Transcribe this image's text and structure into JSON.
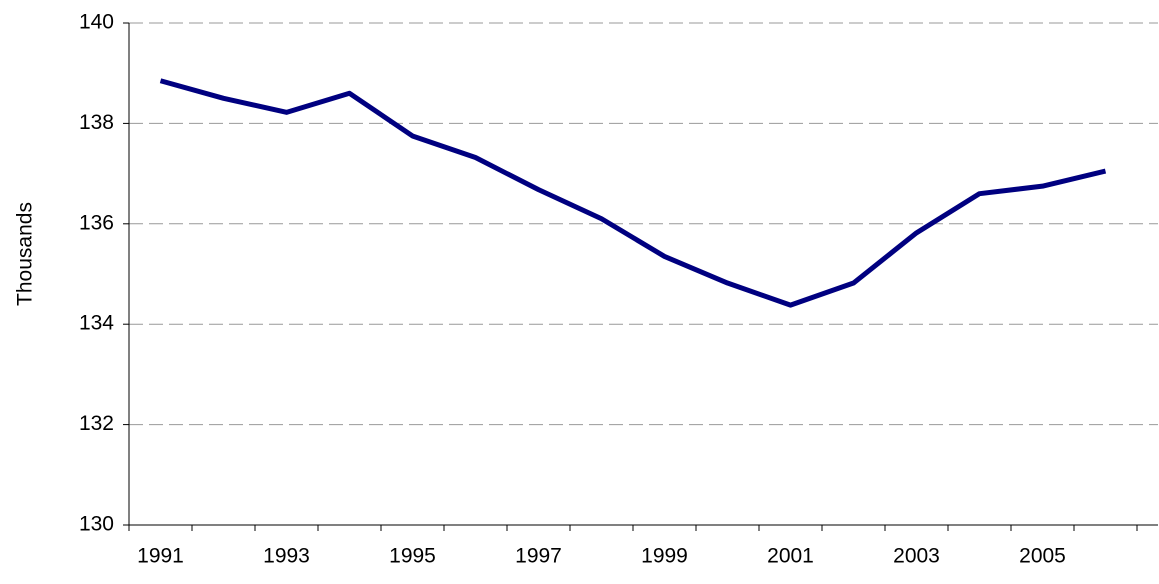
{
  "chart_data": {
    "type": "line",
    "y_label": "Thousands",
    "categories": [
      "1991",
      null,
      "1993",
      null,
      "1995",
      null,
      "1997",
      null,
      "1999",
      null,
      "2001",
      null,
      "2003",
      null,
      "2005",
      null
    ],
    "series": [
      {
        "color": "#000080",
        "values": [
          138.85,
          138.5,
          138.22,
          138.6,
          137.75,
          137.32,
          136.68,
          136.1,
          135.35,
          134.82,
          134.38,
          134.82,
          135.82,
          136.6,
          136.75,
          137.05
        ]
      }
    ],
    "ylim": [
      130,
      140
    ],
    "yticks": [
      130,
      132,
      134,
      136,
      138,
      140
    ],
    "grid": true
  }
}
